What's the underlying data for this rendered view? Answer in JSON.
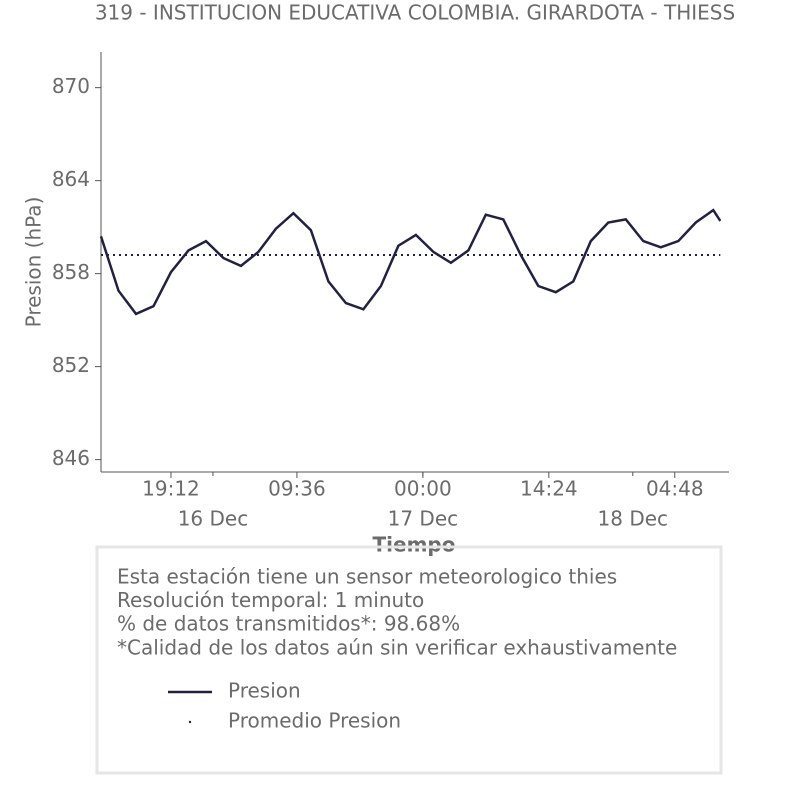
{
  "chart_data": {
    "type": "line",
    "title": "319 - INSTITUCION EDUCATIVA COLOMBIA. GIRARDOTA - THIESS",
    "y_label": "Presion (hPa)",
    "x_label": "Tiempo",
    "x": [
      "15 Dec 11:12",
      "15 Dec 13:12",
      "15 Dec 15:12",
      "15 Dec 17:12",
      "15 Dec 19:12",
      "15 Dec 21:12",
      "15 Dec 23:12",
      "16 Dec 01:12",
      "16 Dec 03:12",
      "16 Dec 05:12",
      "16 Dec 07:12",
      "16 Dec 09:12",
      "16 Dec 11:12",
      "16 Dec 13:12",
      "16 Dec 15:12",
      "16 Dec 17:12",
      "16 Dec 19:12",
      "16 Dec 21:12",
      "16 Dec 23:12",
      "17 Dec 01:12",
      "17 Dec 03:12",
      "17 Dec 05:12",
      "17 Dec 07:12",
      "17 Dec 09:12",
      "17 Dec 11:12",
      "17 Dec 13:12",
      "17 Dec 15:12",
      "17 Dec 17:12",
      "17 Dec 19:12",
      "17 Dec 21:12",
      "17 Dec 23:12",
      "18 Dec 01:12",
      "18 Dec 03:12",
      "18 Dec 05:12",
      "18 Dec 07:12",
      "18 Dec 09:12",
      "18 Dec 10:00"
    ],
    "series": [
      {
        "name": "Presion",
        "color": "#22223f",
        "style": "solid",
        "values": [
          860.4,
          856.9,
          855.4,
          855.9,
          858.1,
          859.5,
          860.1,
          859.0,
          858.5,
          859.4,
          860.9,
          861.9,
          860.8,
          857.5,
          856.1,
          855.7,
          857.2,
          859.8,
          860.5,
          859.4,
          858.7,
          859.5,
          861.8,
          861.5,
          859.2,
          857.2,
          856.8,
          857.5,
          860.1,
          861.3,
          861.5,
          860.1,
          859.7,
          860.1,
          861.3,
          862.1,
          861.4
        ]
      },
      {
        "name": "Promedio Presion",
        "color": "#22223f",
        "style": "dotted",
        "values": [
          859.2,
          859.2,
          859.2,
          859.2,
          859.2,
          859.2,
          859.2,
          859.2,
          859.2,
          859.2,
          859.2,
          859.2,
          859.2,
          859.2,
          859.2,
          859.2,
          859.2,
          859.2,
          859.2,
          859.2,
          859.2,
          859.2,
          859.2,
          859.2,
          859.2,
          859.2,
          859.2,
          859.2,
          859.2,
          859.2,
          859.2,
          859.2,
          859.2,
          859.2,
          859.2,
          859.2,
          859.2
        ]
      }
    ],
    "xlim": [
      "15 Dec 11:12",
      "18 Dec 11:00"
    ],
    "ylim": [
      845.2,
      872.3
    ],
    "yticks": [
      846,
      852,
      858,
      864,
      870
    ],
    "xticks": [
      {
        "value": "15 Dec 19:12",
        "label": "19:12"
      },
      {
        "value": "16 Dec 09:36",
        "label": "09:36"
      },
      {
        "value": "17 Dec 00:00",
        "label": "00:00"
      },
      {
        "value": "17 Dec 14:24",
        "label": "14:24"
      },
      {
        "value": "18 Dec 04:48",
        "label": "04:48"
      }
    ],
    "xticks_days": [
      {
        "value": "16 Dec 00:00",
        "label": "16 Dec"
      },
      {
        "value": "17 Dec 00:00",
        "label": "17 Dec"
      },
      {
        "value": "18 Dec 00:00",
        "label": "18 Dec"
      }
    ],
    "info": [
      "Esta estación tiene un sensor meteorologico thies",
      "Resolución temporal: 1 minuto",
      "% de datos transmitidos*: 98.68%",
      "*Calidad de los datos aún sin verificar exhaustivamente"
    ]
  }
}
